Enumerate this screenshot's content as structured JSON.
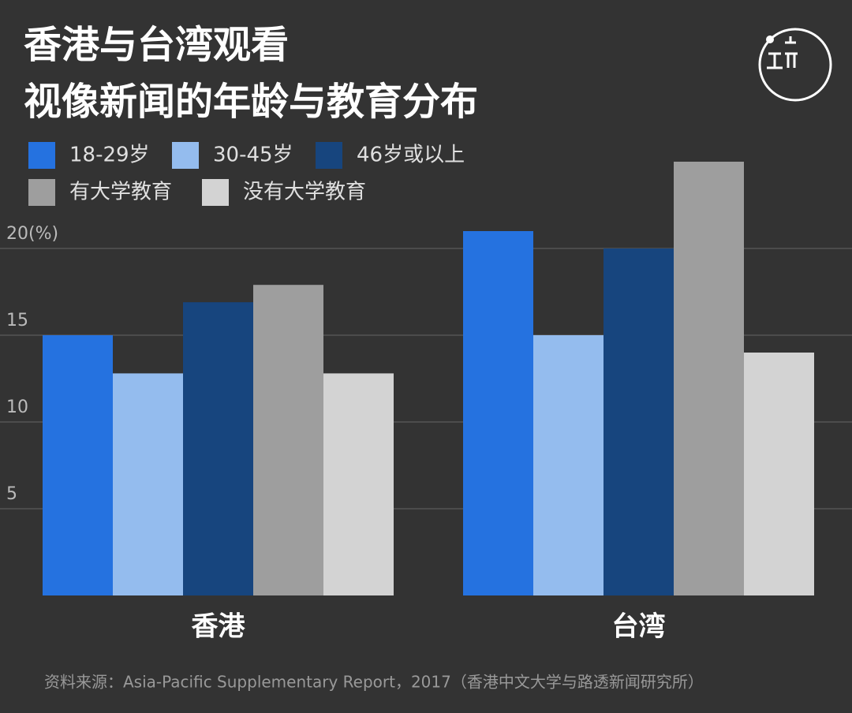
{
  "chart_data": {
    "type": "bar",
    "title": [
      "香港与台湾观看",
      "视像新闻的年龄与教育分布"
    ],
    "categories": [
      "香港",
      "台湾"
    ],
    "series": [
      {
        "name": "18-29岁",
        "color": "#2572e0",
        "values": [
          15,
          21
        ]
      },
      {
        "name": "30-45岁",
        "color": "#94bcee",
        "values": [
          12.8,
          15
        ]
      },
      {
        "name": "46岁或以上",
        "color": "#17457e",
        "values": [
          16.9,
          20
        ]
      },
      {
        "name": "有大学教育",
        "color": "#9e9e9e",
        "values": [
          17.9,
          25
        ]
      },
      {
        "name": "没有大学教育",
        "color": "#d3d3d3",
        "values": [
          12.8,
          14
        ]
      }
    ],
    "ylim": [
      0,
      25
    ],
    "yticks": [
      5,
      10,
      15,
      {
        "value": 20,
        "label": "20(%)"
      }
    ],
    "grid": true,
    "source": "资料来源：Asia-Pacific Supplementary Report，2017（香港中文大学与路透新闻研究所）"
  }
}
